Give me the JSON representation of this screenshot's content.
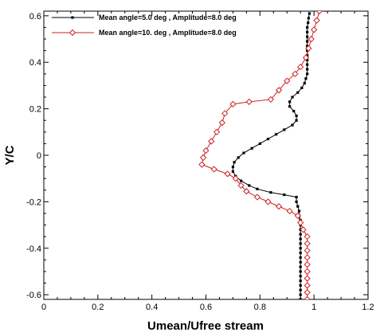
{
  "chart_data": {
    "type": "line",
    "title": "",
    "xlabel": "Umean/Ufree stream",
    "ylabel": "Y/C",
    "xlim": [
      0,
      1.2
    ],
    "ylim": [
      -0.62,
      0.62
    ],
    "xticks": [
      "0",
      "0.2",
      "0.4",
      "0.6",
      "0.8",
      "1",
      "1.2"
    ],
    "yticks": [
      "-0.6",
      "-0.4",
      "-0.2",
      "0",
      "0.2",
      "0.4",
      "0.6"
    ],
    "grid": false,
    "legend_position": "top-left",
    "series": [
      {
        "name": "Mean angle=5.0 deg , Amplitude=8.0 deg",
        "color": "#000000",
        "marker": "square",
        "points": [
          [
            0.95,
            -0.62
          ],
          [
            0.95,
            -0.6
          ],
          [
            0.95,
            -0.58
          ],
          [
            0.95,
            -0.56
          ],
          [
            0.95,
            -0.54
          ],
          [
            0.95,
            -0.52
          ],
          [
            0.95,
            -0.5
          ],
          [
            0.95,
            -0.48
          ],
          [
            0.95,
            -0.46
          ],
          [
            0.95,
            -0.44
          ],
          [
            0.95,
            -0.42
          ],
          [
            0.95,
            -0.4
          ],
          [
            0.95,
            -0.38
          ],
          [
            0.95,
            -0.36
          ],
          [
            0.95,
            -0.34
          ],
          [
            0.95,
            -0.32
          ],
          [
            0.95,
            -0.3
          ],
          [
            0.95,
            -0.28
          ],
          [
            0.945,
            -0.26
          ],
          [
            0.945,
            -0.24
          ],
          [
            0.94,
            -0.22
          ],
          [
            0.935,
            -0.2
          ],
          [
            0.935,
            -0.18
          ],
          [
            0.89,
            -0.17
          ],
          [
            0.84,
            -0.16
          ],
          [
            0.79,
            -0.145
          ],
          [
            0.76,
            -0.13
          ],
          [
            0.73,
            -0.11
          ],
          [
            0.71,
            -0.09
          ],
          [
            0.7,
            -0.07
          ],
          [
            0.7,
            -0.05
          ],
          [
            0.705,
            -0.03
          ],
          [
            0.72,
            -0.01
          ],
          [
            0.74,
            0.01
          ],
          [
            0.77,
            0.03
          ],
          [
            0.8,
            0.05
          ],
          [
            0.83,
            0.07
          ],
          [
            0.86,
            0.09
          ],
          [
            0.89,
            0.11
          ],
          [
            0.92,
            0.13
          ],
          [
            0.935,
            0.15
          ],
          [
            0.935,
            0.17
          ],
          [
            0.925,
            0.19
          ],
          [
            0.91,
            0.21
          ],
          [
            0.91,
            0.23
          ],
          [
            0.92,
            0.25
          ],
          [
            0.94,
            0.27
          ],
          [
            0.955,
            0.29
          ],
          [
            0.965,
            0.31
          ],
          [
            0.97,
            0.33
          ],
          [
            0.975,
            0.35
          ],
          [
            0.975,
            0.37
          ],
          [
            0.975,
            0.39
          ],
          [
            0.975,
            0.41
          ],
          [
            0.975,
            0.43
          ],
          [
            0.975,
            0.45
          ],
          [
            0.975,
            0.47
          ],
          [
            0.975,
            0.49
          ],
          [
            0.975,
            0.51
          ],
          [
            0.975,
            0.53
          ],
          [
            0.975,
            0.55
          ],
          [
            0.978,
            0.57
          ],
          [
            0.98,
            0.59
          ],
          [
            0.983,
            0.61
          ]
        ]
      },
      {
        "name": "Mean angle=10. deg , Amplitude=8.0 deg",
        "color": "#cc2222",
        "marker": "diamond",
        "points": [
          [
            0.975,
            -0.62
          ],
          [
            0.975,
            -0.59
          ],
          [
            0.975,
            -0.56
          ],
          [
            0.975,
            -0.53
          ],
          [
            0.975,
            -0.5
          ],
          [
            0.975,
            -0.47
          ],
          [
            0.975,
            -0.44
          ],
          [
            0.975,
            -0.41
          ],
          [
            0.975,
            -0.38
          ],
          [
            0.975,
            -0.35
          ],
          [
            0.96,
            -0.32
          ],
          [
            0.95,
            -0.29
          ],
          [
            0.94,
            -0.26
          ],
          [
            0.91,
            -0.24
          ],
          [
            0.87,
            -0.22
          ],
          [
            0.83,
            -0.2
          ],
          [
            0.79,
            -0.18
          ],
          [
            0.75,
            -0.155
          ],
          [
            0.73,
            -0.13
          ],
          [
            0.71,
            -0.1
          ],
          [
            0.68,
            -0.08
          ],
          [
            0.63,
            -0.06
          ],
          [
            0.585,
            -0.04
          ],
          [
            0.59,
            -0.01
          ],
          [
            0.6,
            0.02
          ],
          [
            0.62,
            0.06
          ],
          [
            0.64,
            0.1
          ],
          [
            0.66,
            0.14
          ],
          [
            0.67,
            0.18
          ],
          [
            0.7,
            0.22
          ],
          [
            0.76,
            0.23
          ],
          [
            0.84,
            0.24
          ],
          [
            0.87,
            0.28
          ],
          [
            0.9,
            0.32
          ],
          [
            0.93,
            0.35
          ],
          [
            0.95,
            0.38
          ],
          [
            0.97,
            0.42
          ],
          [
            0.98,
            0.46
          ],
          [
            0.99,
            0.5
          ],
          [
            1.0,
            0.54
          ],
          [
            1.01,
            0.58
          ],
          [
            1.02,
            0.62
          ]
        ]
      }
    ]
  }
}
